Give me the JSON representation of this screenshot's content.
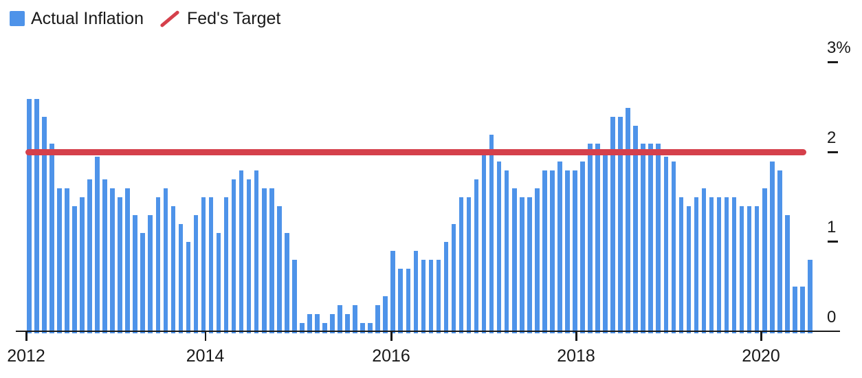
{
  "legend": {
    "series1_label": "Actual Inflation",
    "series2_label": "Fed's Target"
  },
  "colors": {
    "bar": "#4E93E9",
    "target": "#D5404B",
    "axis": "#1A1A1A",
    "text": "#191919",
    "background": "#FFFFFF"
  },
  "chart_data": {
    "type": "bar",
    "title": "",
    "xlabel": "",
    "ylabel": "",
    "grid": false,
    "legend_position": "top-left",
    "ylim": [
      0,
      3.35
    ],
    "y_unit": "%",
    "y_ticks": [
      {
        "label": "0",
        "value": 0
      },
      {
        "label": "1",
        "value": 1
      },
      {
        "label": "2",
        "value": 2
      },
      {
        "label": "3%",
        "value": 3
      }
    ],
    "x_tick_labels": [
      "2012",
      "2014",
      "2016",
      "2018",
      "2020"
    ],
    "series": [
      {
        "name": "Actual Inflation",
        "type": "bar",
        "frequency": "monthly",
        "x_start": "2012-01",
        "x_end": "2020-07",
        "values": [
          2.6,
          2.6,
          2.4,
          2.1,
          1.6,
          1.6,
          1.4,
          1.5,
          1.7,
          1.95,
          1.7,
          1.6,
          1.5,
          1.6,
          1.3,
          1.1,
          1.3,
          1.5,
          1.6,
          1.4,
          1.2,
          1.0,
          1.3,
          1.5,
          1.5,
          1.1,
          1.5,
          1.7,
          1.8,
          1.7,
          1.8,
          1.6,
          1.6,
          1.4,
          1.1,
          0.8,
          0.1,
          0.2,
          0.2,
          0.1,
          0.2,
          0.3,
          0.2,
          0.3,
          0.1,
          0.1,
          0.3,
          0.4,
          0.9,
          0.7,
          0.7,
          0.9,
          0.8,
          0.8,
          0.8,
          1.0,
          1.2,
          1.5,
          1.5,
          1.7,
          2.0,
          2.2,
          1.9,
          1.8,
          1.6,
          1.5,
          1.5,
          1.6,
          1.8,
          1.8,
          1.9,
          1.8,
          1.8,
          1.9,
          2.1,
          2.1,
          2.0,
          2.4,
          2.4,
          2.5,
          2.3,
          2.1,
          2.1,
          2.1,
          1.95,
          1.9,
          1.5,
          1.4,
          1.5,
          1.6,
          1.5,
          1.5,
          1.5,
          1.5,
          1.4,
          1.4,
          1.4,
          1.6,
          1.9,
          1.8,
          1.3,
          0.5,
          0.5,
          0.8
        ]
      }
    ],
    "target_line": {
      "name": "Fed's Target",
      "value": 2.0
    }
  }
}
